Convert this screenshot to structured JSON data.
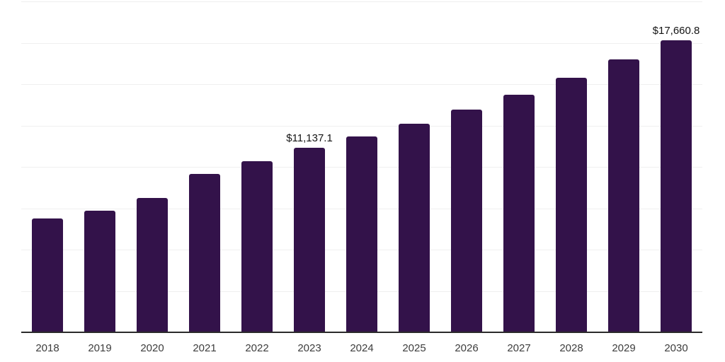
{
  "chart_data": {
    "type": "bar",
    "title": "",
    "xlabel": "",
    "ylabel": "",
    "categories": [
      "2018",
      "2019",
      "2020",
      "2021",
      "2022",
      "2023",
      "2024",
      "2025",
      "2026",
      "2027",
      "2028",
      "2029",
      "2030"
    ],
    "values": [
      6900,
      7360,
      8130,
      9580,
      10360,
      11137.1,
      11850,
      12610,
      13450,
      14370,
      15370,
      16480,
      17660.8
    ],
    "data_labels": [
      {
        "category": "2023",
        "text": "$11,137.1"
      },
      {
        "category": "2030",
        "text": "$17,660.8"
      }
    ],
    "ylim": [
      0,
      20000
    ],
    "grid_step": 2500,
    "grid": "horizontal, light, no y-axis tick labels",
    "legend_position": "none",
    "value_prefix": "$"
  },
  "colors": {
    "bar": "#33124A",
    "gridline": "#efefef",
    "axis_line": "#2b2b2b",
    "tick_label": "#3d3d3d",
    "data_label": "#141414",
    "background": "#ffffff"
  }
}
